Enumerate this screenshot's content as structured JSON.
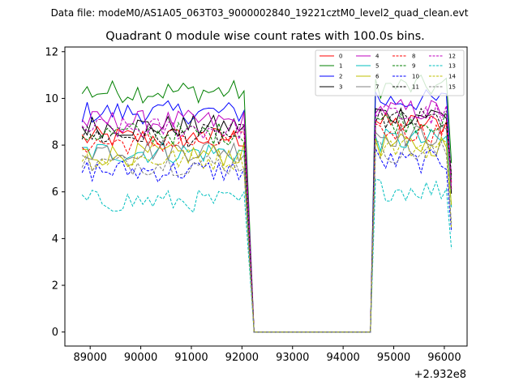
{
  "chart_data": {
    "type": "line",
    "suptitle": "Data file: modeM0/AS1A05_063T03_9000002840_19221cztM0_level2_quad_clean.evt",
    "title": "Quadrant 0 module wise count rates with 100.0s bins.",
    "xlabel": "",
    "ylabel": "",
    "x_offset_label": "+2.932e8",
    "xlim": [
      88500,
      96450
    ],
    "ylim": [
      -0.6,
      12.2
    ],
    "x_ticks": [
      89000,
      90000,
      91000,
      92000,
      93000,
      94000,
      95000,
      96000
    ],
    "x_tick_labels": [
      "89000",
      "90000",
      "91000",
      "92000",
      "93000",
      "94000",
      "95000",
      "96000"
    ],
    "y_ticks": [
      0,
      2,
      4,
      6,
      8,
      10,
      12
    ],
    "y_tick_labels": [
      "0",
      "2",
      "4",
      "6",
      "8",
      "10",
      "12"
    ],
    "legend_position": "top-right",
    "time_segments": {
      "seg1_start": 88840,
      "seg1_end": 92040,
      "gap_start": 92240,
      "gap_end": 94540,
      "seg2_start": 94640,
      "seg2_end": 96140,
      "bin": 100
    },
    "series": [
      {
        "name": "0",
        "color": "#ff0000",
        "dash": "solid",
        "mean1": 8.3,
        "mean2": 8.9
      },
      {
        "name": "1",
        "color": "#008000",
        "dash": "solid",
        "mean1": 10.3,
        "mean2": 10.5
      },
      {
        "name": "2",
        "color": "#0000ff",
        "dash": "solid",
        "mean1": 9.4,
        "mean2": 9.9
      },
      {
        "name": "3",
        "color": "#000000",
        "dash": "solid",
        "mean1": 8.8,
        "mean2": 9.3
      },
      {
        "name": "4",
        "color": "#bf00bf",
        "dash": "solid",
        "mean1": 9.0,
        "mean2": 9.5
      },
      {
        "name": "5",
        "color": "#00bfbf",
        "dash": "solid",
        "mean1": 7.7,
        "mean2": 8.2
      },
      {
        "name": "6",
        "color": "#bfbf00",
        "dash": "solid",
        "mean1": 7.6,
        "mean2": 8.0
      },
      {
        "name": "7",
        "color": "#808080",
        "dash": "solid",
        "mean1": 7.8,
        "mean2": 8.4
      },
      {
        "name": "8",
        "color": "#ff0000",
        "dash": "dashed",
        "mean1": 8.1,
        "mean2": 8.6
      },
      {
        "name": "9",
        "color": "#008000",
        "dash": "dashed",
        "mean1": 8.5,
        "mean2": 9.0
      },
      {
        "name": "10",
        "color": "#0000ff",
        "dash": "dashed",
        "mean1": 6.9,
        "mean2": 7.3
      },
      {
        "name": "11",
        "color": "#000000",
        "dash": "dashed",
        "mean1": 8.4,
        "mean2": 9.1
      },
      {
        "name": "12",
        "color": "#bf00bf",
        "dash": "dashed",
        "mean1": 8.7,
        "mean2": 9.3
      },
      {
        "name": "13",
        "color": "#00bfbf",
        "dash": "dashed",
        "mean1": 5.6,
        "mean2": 6.1
      },
      {
        "name": "14",
        "color": "#bfbf00",
        "dash": "dashed",
        "mean1": 7.4,
        "mean2": 7.9
      },
      {
        "name": "15",
        "color": "#808080",
        "dash": "dashed",
        "mean1": 7.2,
        "mean2": 7.7
      }
    ]
  }
}
